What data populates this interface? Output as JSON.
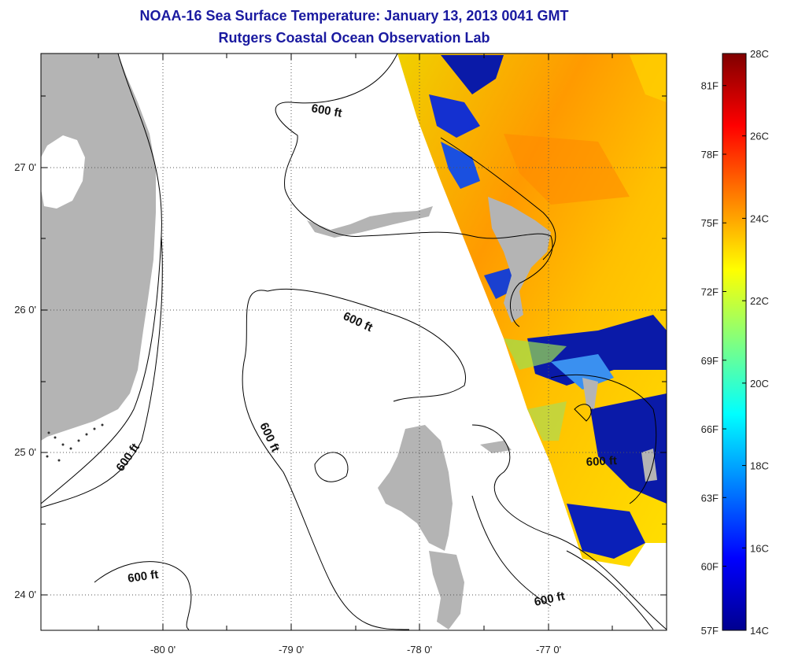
{
  "title": {
    "line1": "NOAA-16 Sea Surface Temperature:  January 13, 2013 0041 GMT",
    "line2": "Rutgers Coastal Ocean Observation Lab"
  },
  "map": {
    "lon_labels": [
      "-80 0'",
      "-79 0'",
      "-78 0'",
      "-77 0'"
    ],
    "lat_labels": [
      "27 0'",
      "26 0'",
      "25 0'",
      "24 0'"
    ],
    "contour_label": "600 ft",
    "land_color": "#b4b4b4",
    "ocean_color": "#ffffff"
  },
  "colorbar": {
    "celsius_labels": [
      "28C",
      "26C",
      "24C",
      "22C",
      "20C",
      "18C",
      "16C",
      "14C"
    ],
    "fahrenheit_labels": [
      "81F",
      "78F",
      "75F",
      "72F",
      "69F",
      "66F",
      "63F",
      "60F",
      "57F"
    ],
    "min_c": 14,
    "max_c": 28,
    "colormap": [
      "#00008f",
      "#0000ff",
      "#0080ff",
      "#00ffff",
      "#80ff80",
      "#ffff00",
      "#ff8000",
      "#ff0000",
      "#800000"
    ]
  }
}
